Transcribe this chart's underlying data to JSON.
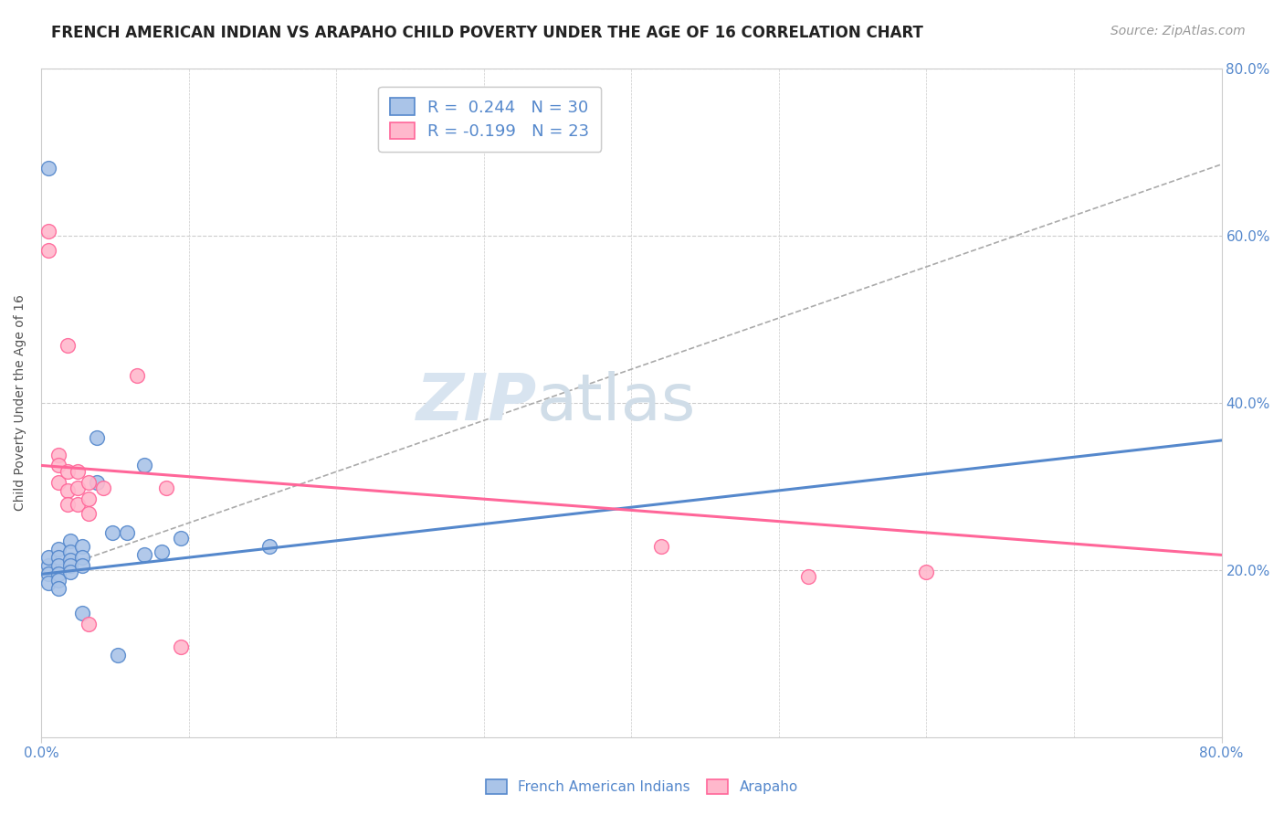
{
  "title": "FRENCH AMERICAN INDIAN VS ARAPAHO CHILD POVERTY UNDER THE AGE OF 16 CORRELATION CHART",
  "source": "Source: ZipAtlas.com",
  "ylabel": "Child Poverty Under the Age of 16",
  "legend_blue_label": "French American Indians",
  "legend_pink_label": "Arapaho",
  "legend_blue_r": "R =  0.244",
  "legend_blue_n": "N = 30",
  "legend_pink_r": "R = -0.199",
  "legend_pink_n": "N = 23",
  "watermark_zip": "ZIP",
  "watermark_atlas": "atlas",
  "blue_color": "#5588CC",
  "pink_color": "#FF6699",
  "blue_fill": "#aac4e8",
  "pink_fill": "#ffb8cc",
  "blue_points": [
    [
      0.005,
      0.205
    ],
    [
      0.005,
      0.215
    ],
    [
      0.005,
      0.195
    ],
    [
      0.005,
      0.185
    ],
    [
      0.012,
      0.225
    ],
    [
      0.012,
      0.215
    ],
    [
      0.012,
      0.205
    ],
    [
      0.012,
      0.195
    ],
    [
      0.012,
      0.188
    ],
    [
      0.012,
      0.178
    ],
    [
      0.02,
      0.235
    ],
    [
      0.02,
      0.222
    ],
    [
      0.02,
      0.212
    ],
    [
      0.02,
      0.205
    ],
    [
      0.02,
      0.198
    ],
    [
      0.028,
      0.228
    ],
    [
      0.028,
      0.215
    ],
    [
      0.028,
      0.205
    ],
    [
      0.028,
      0.148
    ],
    [
      0.038,
      0.358
    ],
    [
      0.038,
      0.305
    ],
    [
      0.048,
      0.245
    ],
    [
      0.058,
      0.245
    ],
    [
      0.07,
      0.325
    ],
    [
      0.07,
      0.218
    ],
    [
      0.082,
      0.222
    ],
    [
      0.095,
      0.238
    ],
    [
      0.005,
      0.68
    ],
    [
      0.155,
      0.228
    ],
    [
      0.052,
      0.098
    ]
  ],
  "pink_points": [
    [
      0.005,
      0.605
    ],
    [
      0.005,
      0.582
    ],
    [
      0.018,
      0.468
    ],
    [
      0.012,
      0.338
    ],
    [
      0.012,
      0.325
    ],
    [
      0.012,
      0.305
    ],
    [
      0.018,
      0.318
    ],
    [
      0.018,
      0.295
    ],
    [
      0.018,
      0.278
    ],
    [
      0.025,
      0.318
    ],
    [
      0.025,
      0.298
    ],
    [
      0.025,
      0.278
    ],
    [
      0.032,
      0.305
    ],
    [
      0.032,
      0.285
    ],
    [
      0.032,
      0.268
    ],
    [
      0.032,
      0.135
    ],
    [
      0.042,
      0.298
    ],
    [
      0.065,
      0.432
    ],
    [
      0.085,
      0.298
    ],
    [
      0.42,
      0.228
    ],
    [
      0.52,
      0.192
    ],
    [
      0.6,
      0.198
    ],
    [
      0.095,
      0.108
    ]
  ],
  "blue_line_x": [
    0.0,
    0.8
  ],
  "blue_line_y": [
    0.195,
    0.355
  ],
  "pink_line_x": [
    0.0,
    0.8
  ],
  "pink_line_y": [
    0.325,
    0.218
  ],
  "dash_line_x": [
    0.0,
    0.8
  ],
  "dash_line_y": [
    0.195,
    0.685
  ],
  "xlim": [
    0.0,
    0.8
  ],
  "ylim": [
    0.0,
    0.8
  ],
  "ytick_positions": [
    0.2,
    0.4,
    0.6,
    0.8
  ],
  "ytick_labels": [
    "20.0%",
    "40.0%",
    "60.0%",
    "80.0%"
  ],
  "xtick_labels": [
    "0.0%",
    "80.0%"
  ],
  "grid_color": "#cccccc",
  "background_color": "#ffffff",
  "title_fontsize": 12,
  "axis_label_fontsize": 10,
  "legend_fontsize": 13,
  "source_fontsize": 10,
  "tick_fontsize": 11
}
